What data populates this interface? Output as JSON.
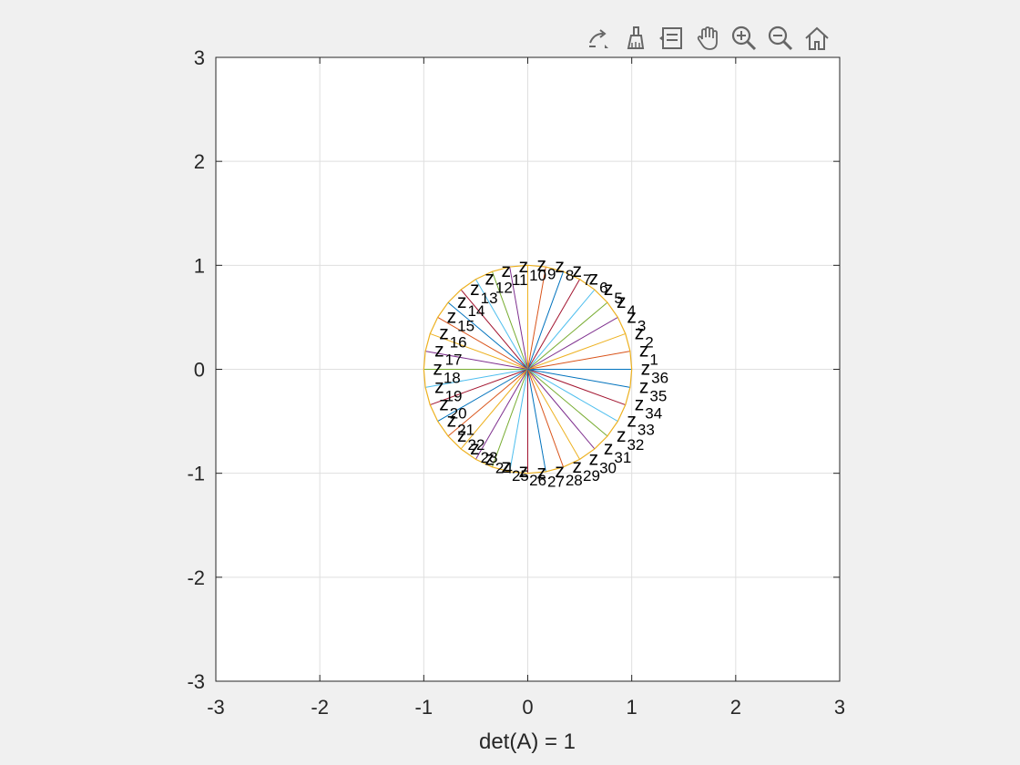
{
  "toolbar": {
    "items": [
      {
        "name": "export-icon",
        "label": ""
      },
      {
        "name": "brush-icon",
        "label": ""
      },
      {
        "name": "legend-icon",
        "label": ""
      },
      {
        "name": "pan-hand-icon",
        "label": ""
      },
      {
        "name": "zoom-in-icon",
        "label": ""
      },
      {
        "name": "zoom-out-icon",
        "label": ""
      },
      {
        "name": "home-icon",
        "label": ""
      }
    ]
  },
  "chart_data": {
    "type": "line",
    "title": "",
    "xlabel": "det(A) = 1",
    "ylabel": "",
    "xlim": [
      -3,
      3
    ],
    "ylim": [
      -3,
      3
    ],
    "xticks": [
      "-3",
      "-2",
      "-1",
      "0",
      "1",
      "2",
      "3"
    ],
    "yticks": [
      "-3",
      "-2",
      "-1",
      "0",
      "1",
      "2",
      "3"
    ],
    "grid": true,
    "radius": 1,
    "num_vectors": 36,
    "angle_step_deg": 10,
    "label_prefix": "z",
    "label_indices": [
      1,
      2,
      3,
      4,
      5,
      6,
      7,
      8,
      9,
      10,
      11,
      12,
      13,
      14,
      15,
      16,
      17,
      18,
      19,
      20,
      21,
      22,
      23,
      24,
      25,
      26,
      27,
      28,
      29,
      30,
      31,
      32,
      33,
      34,
      35,
      36
    ],
    "colors": [
      "#0072BD",
      "#D95319",
      "#EDB120",
      "#7E2F8E",
      "#77AC30",
      "#4DBEEE",
      "#A2142F"
    ],
    "circle_color": "#EDB120"
  }
}
